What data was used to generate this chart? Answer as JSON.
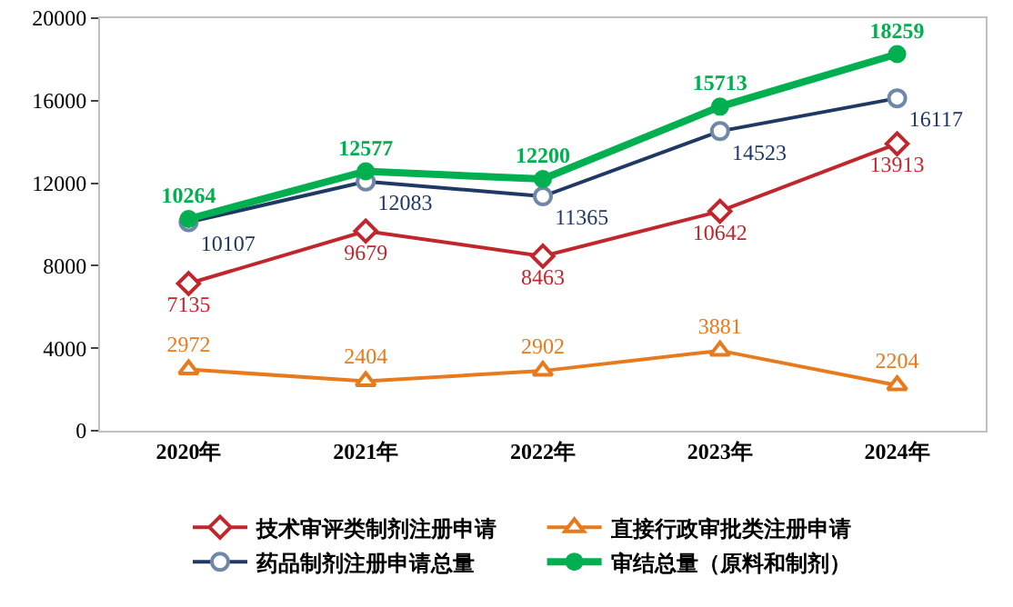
{
  "chart_data": {
    "type": "line",
    "categories": [
      "2020年",
      "2021年",
      "2022年",
      "2023年",
      "2024年"
    ],
    "series": [
      {
        "name": "技术审评类制剂注册申请",
        "color": "#c0272d",
        "marker": "diamond",
        "values": [
          7135,
          9679,
          8463,
          10642,
          13913
        ]
      },
      {
        "name": "直接行政审批类注册申请",
        "color": "#e87a1e",
        "marker": "triangle",
        "values": [
          2972,
          2404,
          2902,
          3881,
          2204
        ]
      },
      {
        "name": "药品制剂注册申请总量",
        "color": "#203864",
        "marker": "circle",
        "values": [
          10107,
          12083,
          11365,
          14523,
          16117
        ]
      },
      {
        "name": "审结总量（原料和制剂）",
        "color": "#00b050",
        "marker": "circle",
        "values": [
          10264,
          12577,
          12200,
          15713,
          18259
        ]
      }
    ],
    "ylim": [
      0,
      20000
    ],
    "yticks": [
      0,
      4000,
      8000,
      12000,
      16000,
      20000
    ],
    "grid": false,
    "legend": "bottom",
    "data_labels": true
  }
}
